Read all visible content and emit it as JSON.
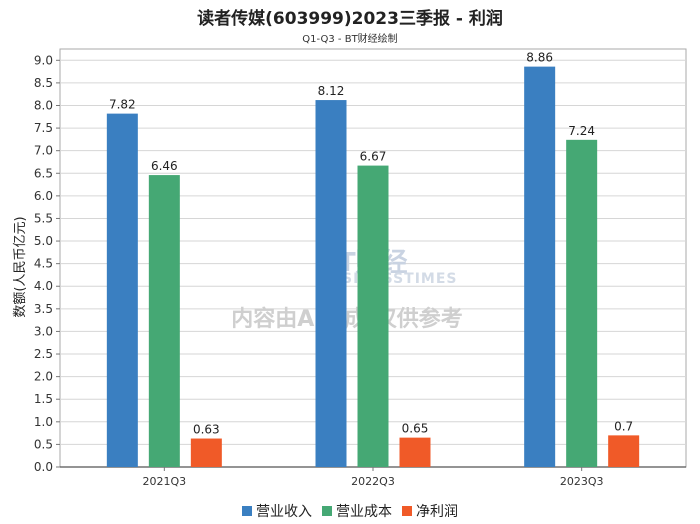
{
  "chart_data": {
    "type": "bar",
    "title": "读者传媒(603999)2023三季报 - 利润",
    "subtitle": "Q1-Q3 - BT财经绘制",
    "ylabel": "数额(人民币亿元)",
    "xlabel": "",
    "categories": [
      "2021Q3",
      "2022Q3",
      "2023Q3"
    ],
    "ylim": [
      0,
      9.25
    ],
    "yticks": [
      "0.0",
      "0.5",
      "1.0",
      "1.5",
      "2.0",
      "2.5",
      "3.0",
      "3.5",
      "4.0",
      "4.5",
      "5.0",
      "5.5",
      "6.0",
      "6.5",
      "7.0",
      "7.5",
      "8.0",
      "8.5",
      "9.0"
    ],
    "grid": true,
    "legend_position": "bottom",
    "series": [
      {
        "name": "营业收入",
        "color": "#3a7fc1",
        "values": [
          7.82,
          8.12,
          8.86
        ],
        "labels": [
          "7.82",
          "8.12",
          "8.86"
        ]
      },
      {
        "name": "营业成本",
        "color": "#45a874",
        "values": [
          6.46,
          6.67,
          7.24
        ],
        "labels": [
          "6.46",
          "6.67",
          "7.24"
        ]
      },
      {
        "name": "净利润",
        "color": "#f05a28",
        "values": [
          0.63,
          0.65,
          0.7
        ],
        "labels": [
          "0.63",
          "0.65",
          "0.7"
        ]
      }
    ],
    "watermark": {
      "logo": "BT财经",
      "logo_sub": "BUSINESSTIMES",
      "notice": "内容由AI生成,仅供参考"
    }
  }
}
